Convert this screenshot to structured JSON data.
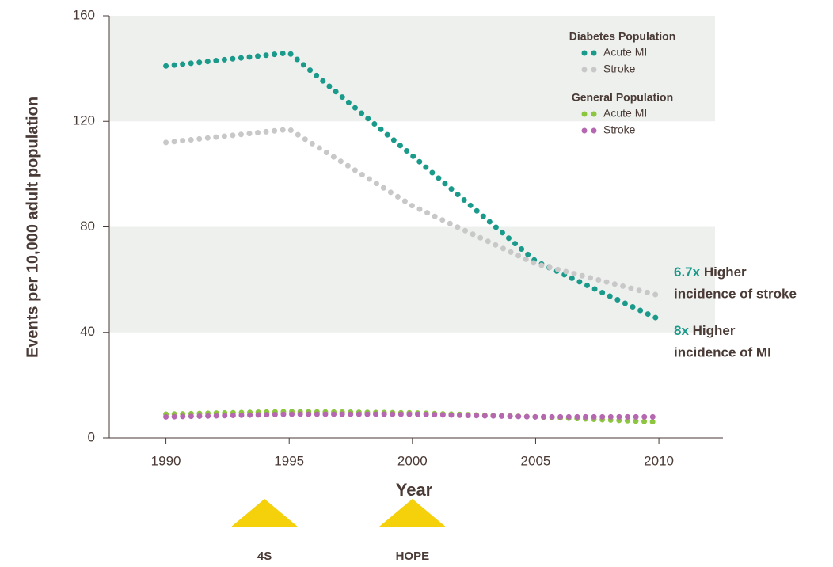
{
  "chart_data": {
    "type": "dotted-line",
    "x_label": "Year",
    "y_label": "Events per 10,000 adult population",
    "x": [
      1990,
      1995,
      2000,
      2005,
      2010
    ],
    "xlim": [
      1987.7,
      2012.6
    ],
    "xticks": [
      1990,
      1995,
      2000,
      2005,
      2010
    ],
    "ylim": [
      0,
      160
    ],
    "yticks": [
      0,
      40,
      80,
      120,
      160
    ],
    "bands": [
      [
        40,
        80
      ],
      [
        120,
        160
      ]
    ],
    "band_color": "#eef0ee",
    "legend_groups": [
      "Diabetes Population",
      "General Population"
    ],
    "series": [
      {
        "name": "Acute MI",
        "group": 0,
        "color": "#1a9a8a",
        "values": [
          141,
          146,
          107,
          67,
          45
        ]
      },
      {
        "name": "Stroke",
        "group": 0,
        "color": "#c8c8c8",
        "values": [
          112,
          117,
          88,
          66,
          54
        ]
      },
      {
        "name": "Acute MI",
        "group": 1,
        "color": "#8cc63f",
        "values": [
          9,
          10,
          9.5,
          8,
          6
        ]
      },
      {
        "name": "Stroke",
        "group": 1,
        "color": "#b567b0",
        "values": [
          8,
          9,
          9,
          8,
          8
        ]
      }
    ],
    "annotations": [
      {
        "emphasis": "6.7x",
        "lines": [
          "Higher",
          "incidence of stroke"
        ]
      },
      {
        "emphasis": "8x",
        "lines": [
          "Higher",
          "incidence of MI"
        ]
      }
    ],
    "milestones": [
      {
        "label": "4S",
        "x": 1994,
        "color": "#f5d10c"
      },
      {
        "label": "HOPE",
        "x": 2000,
        "color": "#f5d10c"
      }
    ]
  }
}
